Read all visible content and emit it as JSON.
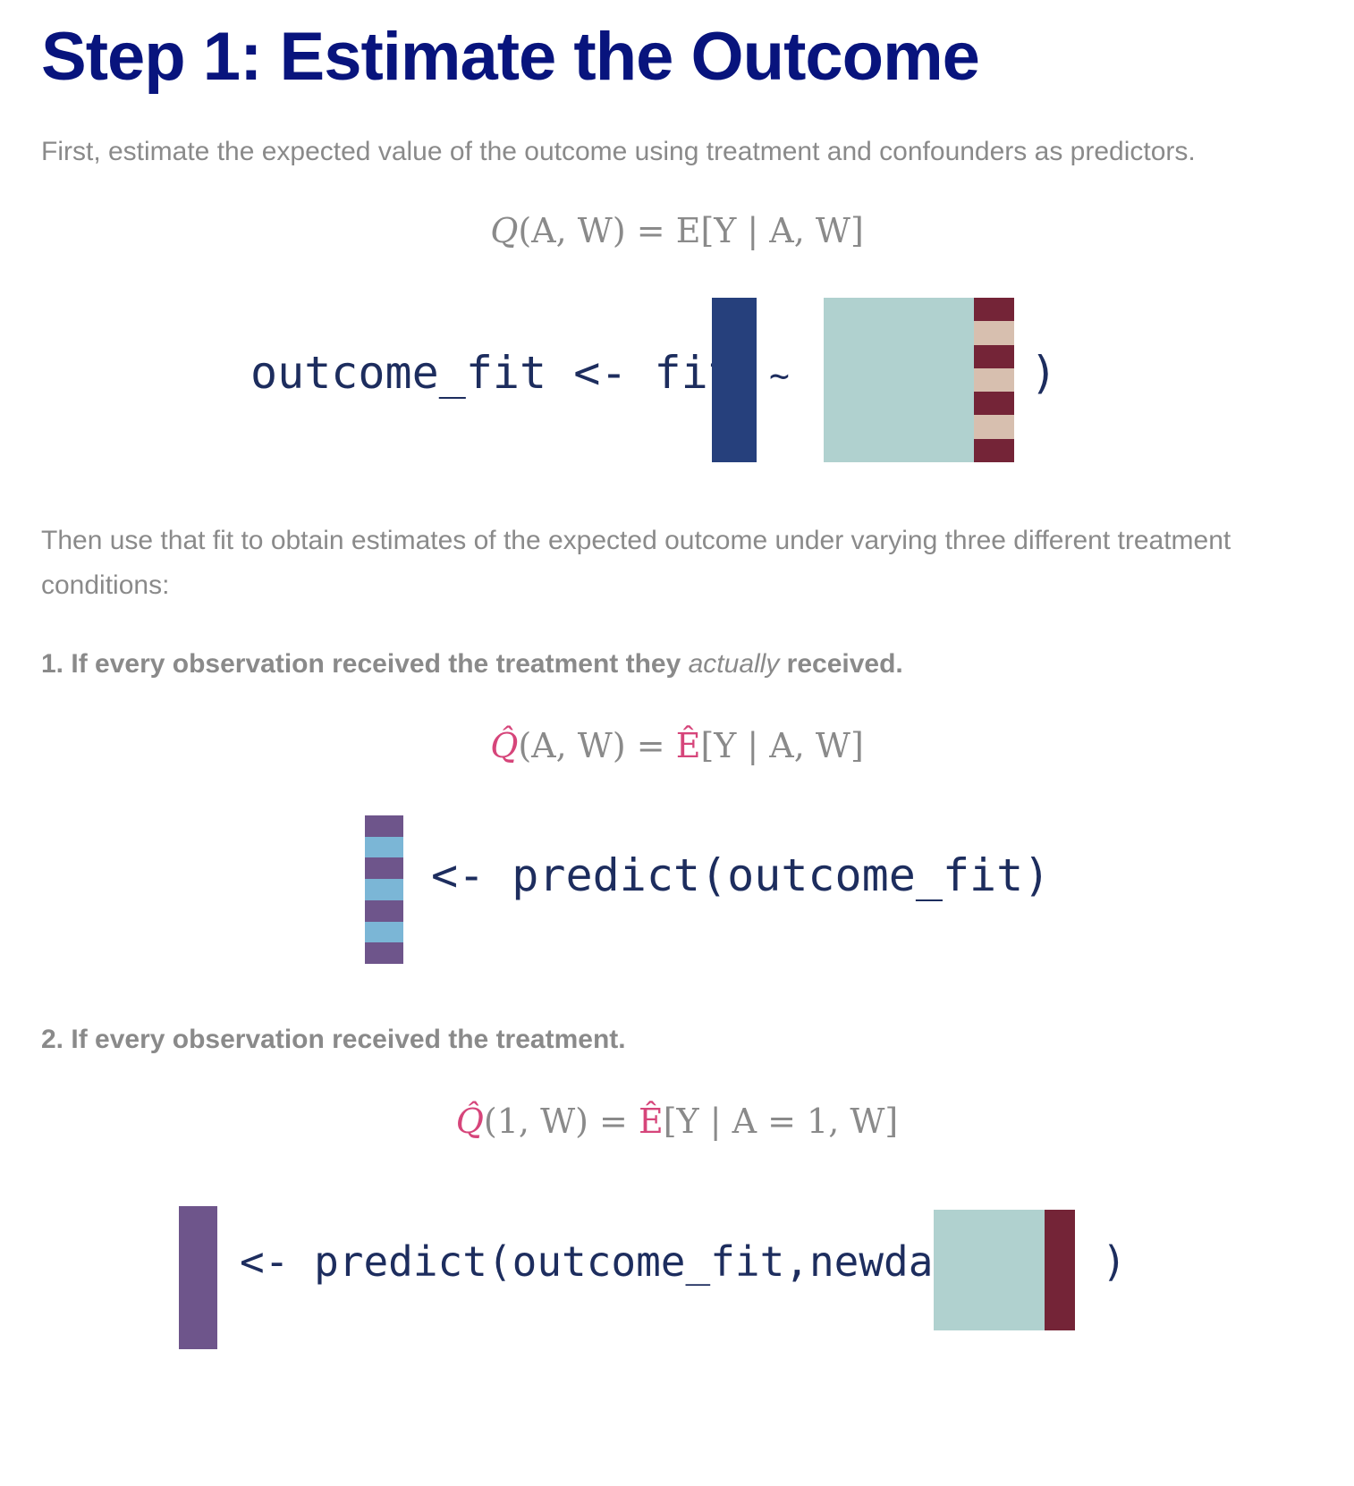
{
  "title": "Step 1: Estimate the Outcome",
  "intro": "First, estimate the expected value of the outcome using treatment and confounders as predictors.",
  "eq1": {
    "lhs_fn": "Q",
    "lhs_args": "(A, W)",
    "rhs_op": "E",
    "rhs_args": "[Y | A, W]"
  },
  "code1": {
    "prefix": "outcome_fit <- fit(",
    "tilde": "~",
    "suffix": ")"
  },
  "then_text": "Then use that fit to obtain estimates of the expected outcome under varying three different treatment conditions:",
  "item1": {
    "before": "1. If every observation received the treatment they ",
    "emph": "actually",
    "after": " received."
  },
  "eq2": {
    "lhs_fn": "Q̂",
    "lhs_args": "(A, W)",
    "rhs_op": "Ê",
    "rhs_args": "[Y | A, W]"
  },
  "code2": {
    "text": "<- predict(outcome_fit)"
  },
  "item2": {
    "text": "2. If every observation received the treatment."
  },
  "eq3": {
    "lhs_fn": "Q̂",
    "lhs_args": "(1, W)",
    "rhs_op": "Ê",
    "rhs_args": "[Y | A = 1, W]"
  },
  "code3": {
    "text": "<- predict(outcome_fit,newdata=",
    "suffix": ")"
  },
  "colors": {
    "title": "#08147d",
    "outcome_block": "#26407c",
    "confounders_block": "#b0d1cf",
    "treatment_dark": "#742437",
    "treatment_light": "#d7bfaf",
    "pred_purple": "#6e558b",
    "pred_blue": "#7bb6d6",
    "hat_pink": "#d6457a"
  }
}
